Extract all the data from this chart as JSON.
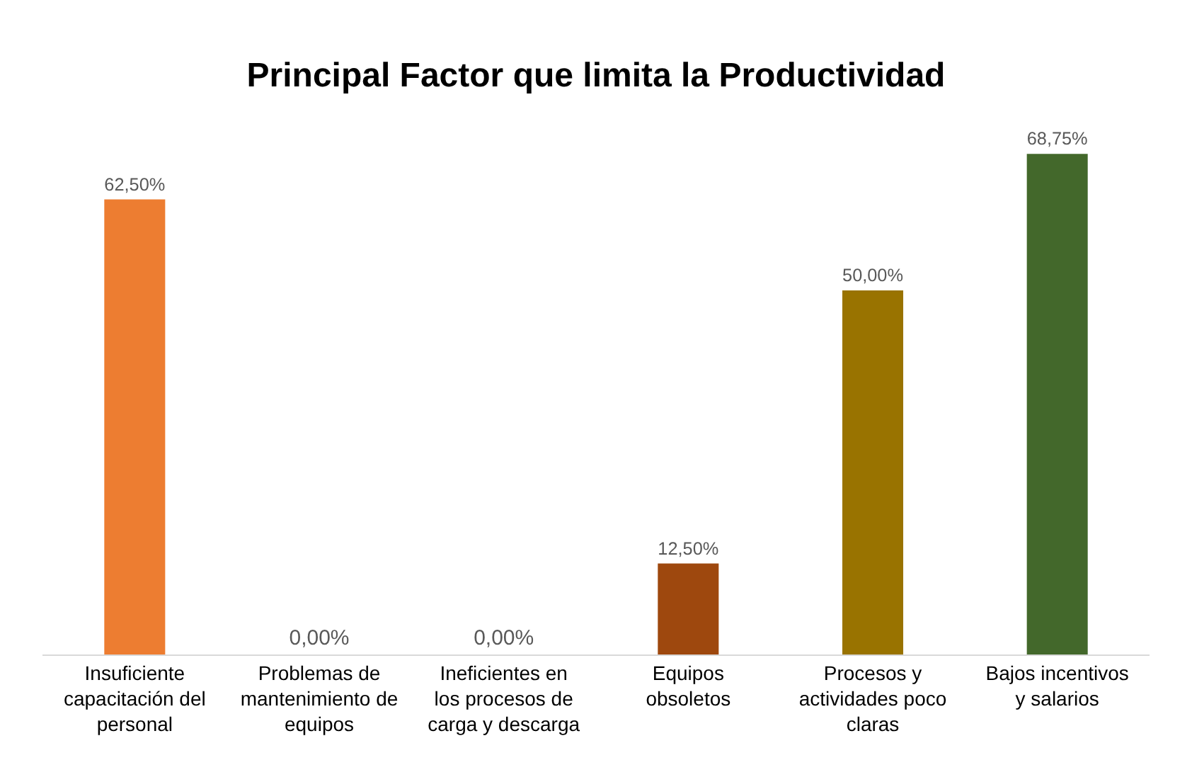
{
  "chart_data": {
    "type": "bar",
    "title": "Principal Factor que limita la Productividad",
    "categories": [
      "Insuficiente capacitación del personal",
      "Problemas de mantenimiento de equipos",
      "Ineficientes en los procesos de carga y descarga",
      "Equipos obsoletos",
      "Procesos y actividades poco claras",
      "Bajos incentivos y salarios"
    ],
    "values": [
      62.5,
      0,
      0,
      12.5,
      50,
      68.75
    ],
    "value_labels": [
      "62,50%",
      "0,00%",
      "0,00%",
      "12,50%",
      "50,00%",
      "68,75%"
    ],
    "colors": [
      "#ed7d31",
      "#a5a5a5",
      "#ffc000",
      "#9e480e",
      "#997300",
      "#43682b"
    ],
    "tick_labels": "x",
    "legend": false
  }
}
